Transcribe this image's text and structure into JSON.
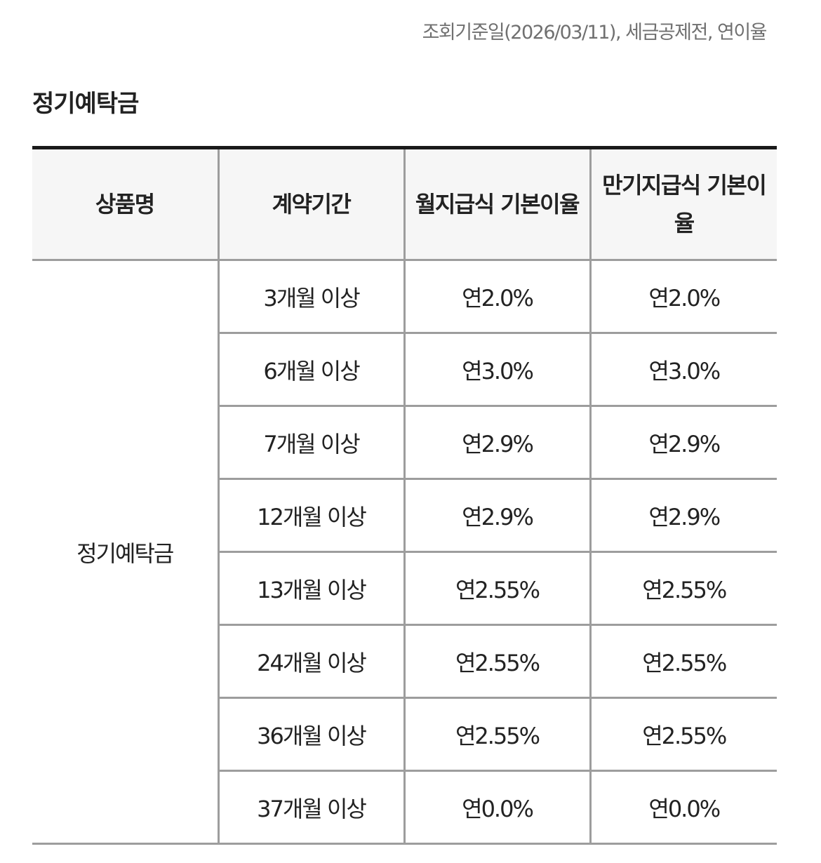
{
  "notice": "조회기준일(2026/03/11), 세금공제전, 연이율",
  "section_title": "정기예탁금",
  "table": {
    "headers": [
      "상품명",
      "계약기간",
      "월지급식 기본이율",
      "만기지급식 기본이율"
    ],
    "product_name": "정기예탁금",
    "rows": [
      {
        "term": "3개월 이상",
        "monthly_rate": "연2.0%",
        "maturity_rate": "연2.0%"
      },
      {
        "term": "6개월 이상",
        "monthly_rate": "연3.0%",
        "maturity_rate": "연3.0%"
      },
      {
        "term": "7개월 이상",
        "monthly_rate": "연2.9%",
        "maturity_rate": "연2.9%"
      },
      {
        "term": "12개월 이상",
        "monthly_rate": "연2.9%",
        "maturity_rate": "연2.9%"
      },
      {
        "term": "13개월 이상",
        "monthly_rate": "연2.55%",
        "maturity_rate": "연2.55%"
      },
      {
        "term": "24개월 이상",
        "monthly_rate": "연2.55%",
        "maturity_rate": "연2.55%"
      },
      {
        "term": "36개월 이상",
        "monthly_rate": "연2.55%",
        "maturity_rate": "연2.55%"
      },
      {
        "term": "37개월 이상",
        "monthly_rate": "연0.0%",
        "maturity_rate": "연0.0%"
      }
    ]
  }
}
